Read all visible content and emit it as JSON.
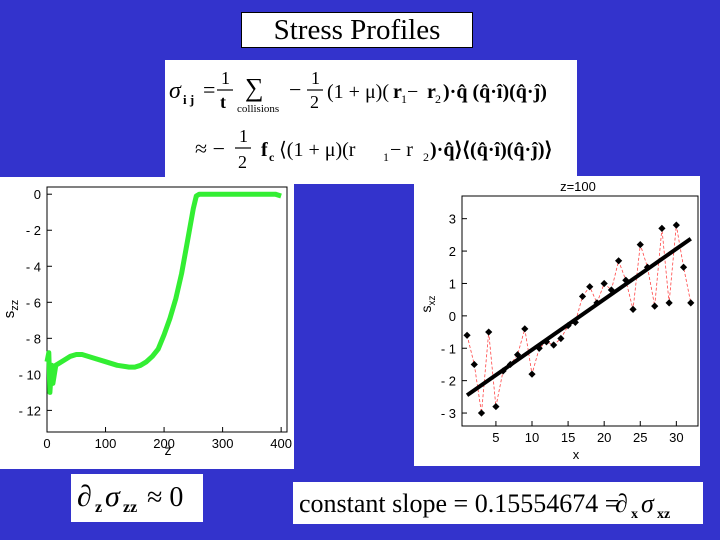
{
  "slide": {
    "title": "Stress Profiles",
    "background": "#3333cc"
  },
  "formula": {
    "line1": {
      "lhs": "σ",
      "lhs_sub": "i j",
      "eq": "=",
      "frac1_num": "1",
      "frac1_den": "t",
      "sum": "∑",
      "sum_sub": "collisions",
      "minus": "−",
      "frac2_num": "1",
      "frac2_den": "2",
      "paren_mu": "(1 + μ)(",
      "r1": "r",
      "r1_sub": "1",
      "minus_r": " − ",
      "r2": "r",
      "r2_sub": "2",
      "dot_q": ")·q̂ (q̂·î)(q̂·ĵ)"
    },
    "line2": {
      "approx": "≈ −",
      "frac_num": "1",
      "frac_den": "2",
      "fc": "f",
      "fc_sub": "c",
      "body": "⟨(1 + μ)(r",
      "s1": "1",
      "mid": " − r",
      "s2": "2",
      "tail": ")·q̂⟩⟨(q̂·î)(q̂·ĵ)⟩"
    }
  },
  "equations": {
    "left": {
      "partial": "∂",
      "sub_z": "z",
      "sigma": "σ",
      "sub_zz": "zz",
      "rel": "≈ 0"
    },
    "right": {
      "text": "constant slope = 0.15554674 = ",
      "partial": "∂",
      "sub_x": "x",
      "sigma": "σ",
      "sub_xz": "xz"
    }
  },
  "chart_data": [
    {
      "type": "line",
      "title": "",
      "xlabel": "z",
      "ylabel": "s",
      "ylabel_sub": "zz",
      "xlim": [
        0,
        410
      ],
      "ylim": [
        -13.2,
        0.4
      ],
      "xticks": [
        0,
        100,
        200,
        300,
        400
      ],
      "yticks": [
        0,
        -2,
        -4,
        -6,
        -8,
        -10,
        -12
      ],
      "series": [
        {
          "color": "#33ee33",
          "x": [
            0,
            3,
            5,
            8,
            10,
            15,
            20,
            30,
            40,
            50,
            60,
            80,
            100,
            120,
            140,
            150,
            160,
            170,
            180,
            190,
            200,
            210,
            220,
            230,
            240,
            250,
            255,
            260,
            270,
            300,
            330,
            360,
            390,
            400
          ],
          "y": [
            -9.3,
            -8.8,
            -11.0,
            -9.5,
            -10.5,
            -9.5,
            -9.4,
            -9.2,
            -9.0,
            -8.9,
            -8.9,
            -9.1,
            -9.3,
            -9.5,
            -9.6,
            -9.6,
            -9.5,
            -9.3,
            -9.0,
            -8.6,
            -7.8,
            -6.9,
            -5.8,
            -4.4,
            -2.6,
            -0.8,
            -0.1,
            0.0,
            0.0,
            0.0,
            0.0,
            0.0,
            0.0,
            -0.1
          ]
        }
      ]
    },
    {
      "type": "scatter",
      "title": "z=100",
      "xlabel": "x",
      "ylabel": "s",
      "ylabel_sub": "xz",
      "xlim": [
        0.3,
        33
      ],
      "ylim": [
        -3.4,
        3.7
      ],
      "xticks": [
        5,
        10,
        15,
        20,
        25,
        30
      ],
      "yticks": [
        3,
        2,
        1,
        0,
        -1,
        -2,
        -3
      ],
      "series": [
        {
          "kind": "points",
          "color": "#000000",
          "x": [
            1,
            2,
            3,
            4,
            5,
            6,
            7,
            8,
            9,
            10,
            11,
            12,
            13,
            14,
            15,
            16,
            17,
            18,
            19,
            20,
            21,
            22,
            23,
            24,
            25,
            26,
            27,
            28,
            29,
            30,
            31,
            32
          ],
          "y": [
            -0.6,
            -1.5,
            -3.0,
            -0.5,
            -2.8,
            -1.7,
            -1.5,
            -1.2,
            -0.4,
            -1.8,
            -1.0,
            -0.8,
            -0.9,
            -0.7,
            -0.3,
            -0.2,
            0.6,
            0.9,
            0.4,
            1.0,
            0.8,
            1.7,
            1.1,
            0.2,
            2.2,
            1.5,
            0.3,
            2.7,
            0.4,
            2.8,
            1.5,
            0.4
          ]
        },
        {
          "kind": "fit",
          "color": "#000000",
          "slope": 0.15554674,
          "x": [
            1,
            32
          ],
          "y": [
            -2.45,
            2.38
          ]
        }
      ]
    }
  ]
}
